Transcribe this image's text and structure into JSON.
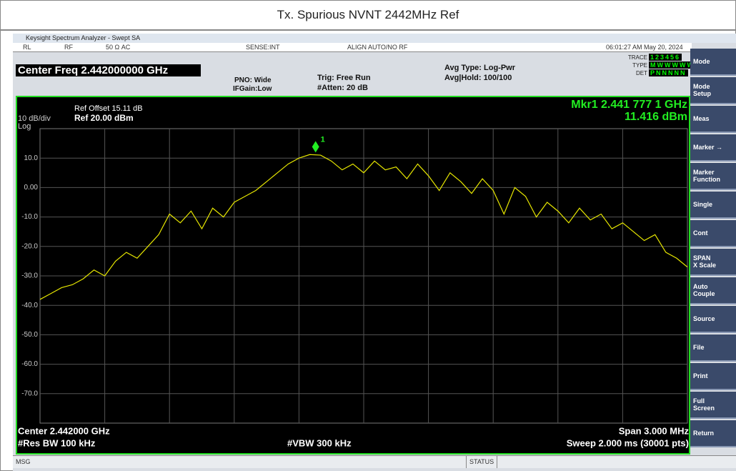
{
  "page_title": "Tx. Spurious NVNT 2442MHz Ref",
  "window": {
    "title": "Keysight Spectrum Analyzer - Swept SA"
  },
  "status_row": {
    "rl": "RL",
    "rf": "RF",
    "impedance": "50 Ω  AC",
    "sense": "SENSE:INT",
    "align": "ALIGN AUTO/NO RF",
    "clock": "06:01:27 AM May 20, 2024"
  },
  "header": {
    "center_freq": "Center Freq 2.442000000 GHz",
    "pno": "PNO: Wide",
    "ifgain": "IFGain:Low",
    "trig": "Trig: Free Run",
    "atten": "#Atten: 20 dB",
    "avg_type": "Avg Type: Log-Pwr",
    "avg_hold": "Avg|Hold: 100/100",
    "trace_label": "TRACE",
    "trace_value": "123456",
    "type_label": "TYPE",
    "type_value": "MWWWWW",
    "det_label": "DET",
    "det_value": "PNNNNN"
  },
  "softkeys": [
    [
      "Mode"
    ],
    [
      "Mode",
      "Setup"
    ],
    [
      "Meas"
    ],
    [
      "Marker →"
    ],
    [
      "Marker",
      "Function"
    ],
    [
      "Single"
    ],
    [
      "Cont"
    ],
    [
      "SPAN",
      "X Scale"
    ],
    [
      "Auto",
      "Couple"
    ],
    [
      "Source"
    ],
    [
      "File"
    ],
    [
      "Print"
    ],
    [
      "Full",
      "Screen"
    ],
    [
      "Return"
    ]
  ],
  "bottom_bar": {
    "msg": "MSG",
    "status": "STATUS"
  },
  "chart_data": {
    "type": "line",
    "ref_offset": "Ref Offset 15.11 dB",
    "ref_level": "Ref 20.00 dBm",
    "scale": "10 dB/div",
    "scale_type": "Log",
    "marker_freq": "Mkr1 2.441 777 1 GHz",
    "marker_level": "11.416 dBm",
    "marker": {
      "label": "1",
      "x": 2.4417771,
      "y": 11.416
    },
    "center": "Center 2.442000 GHz",
    "rbw": "#Res BW 100 kHz",
    "vbw": "#VBW 300 kHz",
    "span": "Span 3.000 MHz",
    "sweep": "Sweep  2.000 ms (30001 pts)",
    "xlim": [
      2.4405,
      2.4435
    ],
    "ylim": [
      -80,
      20
    ],
    "yticks": [
      {
        "value": 10,
        "label": "10.0"
      },
      {
        "value": 0,
        "label": "0.00"
      },
      {
        "value": -10,
        "label": "-10.0"
      },
      {
        "value": -20,
        "label": "-20.0"
      },
      {
        "value": -30,
        "label": "-30.0"
      },
      {
        "value": -40,
        "label": "-40.0"
      },
      {
        "value": -50,
        "label": "-50.0"
      },
      {
        "value": -60,
        "label": "-60.0"
      },
      {
        "value": -70,
        "label": "-70.0"
      }
    ],
    "grid": true,
    "series": [
      {
        "color": "#e6e600",
        "x": [
          2.4405,
          2.44055,
          2.4406,
          2.44065,
          2.4407,
          2.44075,
          2.4408,
          2.44085,
          2.4409,
          2.44095,
          2.441,
          2.44105,
          2.4411,
          2.44115,
          2.4412,
          2.44125,
          2.4413,
          2.44135,
          2.4414,
          2.44145,
          2.4415,
          2.44155,
          2.4416,
          2.44165,
          2.4417,
          2.44175,
          2.4418,
          2.44185,
          2.4419,
          2.44195,
          2.442,
          2.44205,
          2.4421,
          2.44215,
          2.4422,
          2.44225,
          2.4423,
          2.44235,
          2.4424,
          2.44245,
          2.4425,
          2.44255,
          2.4426,
          2.44265,
          2.4427,
          2.44275,
          2.4428,
          2.44285,
          2.4429,
          2.44295,
          2.443,
          2.44305,
          2.4431,
          2.44315,
          2.4432,
          2.44325,
          2.4433,
          2.44335,
          2.4434,
          2.44345,
          2.4435
        ],
        "values": [
          -38,
          -36,
          -34,
          -33,
          -31,
          -28,
          -30,
          -25,
          -22,
          -24,
          -20,
          -16,
          -9,
          -12,
          -8,
          -14,
          -7,
          -10,
          -5,
          -3,
          -1,
          2,
          5,
          8,
          10,
          11.2,
          11,
          9,
          6,
          8,
          5,
          9,
          6,
          7,
          3,
          8,
          4,
          -1,
          5,
          2,
          -2,
          3,
          -1,
          -9,
          0,
          -3,
          -10,
          -5,
          -8,
          -12,
          -7,
          -11,
          -9,
          -14,
          -12,
          -15,
          -18,
          -16,
          -22,
          -24,
          -27
        ]
      }
    ]
  }
}
